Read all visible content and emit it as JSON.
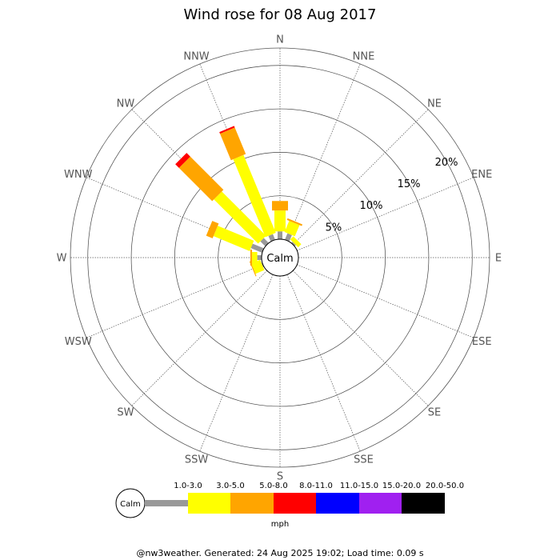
{
  "title": "Wind rose for 08 Aug 2017",
  "footer": "@nw3weather. Generated: 24 Aug 2025 19:02; Load time: 0.09 s",
  "calm_label": "Calm",
  "units_label": "mph",
  "chart_data": {
    "type": "wind-rose",
    "title": "Wind rose for 08 Aug 2017",
    "radial_unit": "%",
    "radial_ticks": [
      {
        "value": 5,
        "label": "5%"
      },
      {
        "value": 10,
        "label": "10%"
      },
      {
        "value": 15,
        "label": "15%"
      },
      {
        "value": 20,
        "label": "20%"
      }
    ],
    "rmax": 22,
    "directions": [
      "N",
      "NNE",
      "NE",
      "ENE",
      "E",
      "ESE",
      "SE",
      "SSE",
      "S",
      "SSW",
      "SW",
      "WSW",
      "W",
      "WNW",
      "NW",
      "NNW"
    ],
    "speed_bins": [
      {
        "label": "1.0-3.0",
        "color": "#999999"
      },
      {
        "label": "3.0-5.0",
        "color": "#ffff00"
      },
      {
        "label": "5.0-8.0",
        "color": "#ffa500"
      },
      {
        "label": "8.0-11.0",
        "color": "#ff0000"
      },
      {
        "label": "11.0-15.0",
        "color": "#0000ff"
      },
      {
        "label": "15.0-20.0",
        "color": "#a020f0"
      },
      {
        "label": "20.0-50.0",
        "color": "#000000"
      }
    ],
    "series": [
      {
        "name": "1.0-3.0",
        "values": [
          0.9,
          0.8,
          0.2,
          0.0,
          0.0,
          0.0,
          0.0,
          0.0,
          0.0,
          0.0,
          0.0,
          0.1,
          0.5,
          1.4,
          0.8,
          0.7
        ]
      },
      {
        "name": "3.0-5.0",
        "values": [
          2.4,
          1.4,
          0.5,
          0.0,
          0.0,
          0.0,
          0.0,
          0.0,
          0.0,
          0.0,
          0.0,
          1.1,
          0.6,
          4.5,
          7.2,
          9.7
        ]
      },
      {
        "name": "5.0-8.0",
        "values": [
          1.1,
          0.2,
          0.0,
          0.0,
          0.0,
          0.0,
          0.0,
          0.0,
          0.0,
          0.0,
          0.0,
          0.1,
          0.2,
          0.8,
          5.4,
          3.3
        ]
      },
      {
        "name": "8.0-11.0",
        "values": [
          0.0,
          0.0,
          0.0,
          0.0,
          0.0,
          0.0,
          0.0,
          0.0,
          0.0,
          0.0,
          0.0,
          0.0,
          0.0,
          0.0,
          0.6,
          0.2
        ]
      },
      {
        "name": "11.0-15.0",
        "values": [
          0,
          0,
          0,
          0,
          0,
          0,
          0,
          0,
          0,
          0,
          0,
          0,
          0,
          0,
          0,
          0
        ]
      },
      {
        "name": "15.0-20.0",
        "values": [
          0,
          0,
          0,
          0,
          0,
          0,
          0,
          0,
          0,
          0,
          0,
          0,
          0,
          0,
          0,
          0
        ]
      },
      {
        "name": "20.0-50.0",
        "values": [
          0,
          0,
          0,
          0,
          0,
          0,
          0,
          0,
          0,
          0,
          0,
          0,
          0,
          0,
          0,
          0
        ]
      }
    ]
  }
}
